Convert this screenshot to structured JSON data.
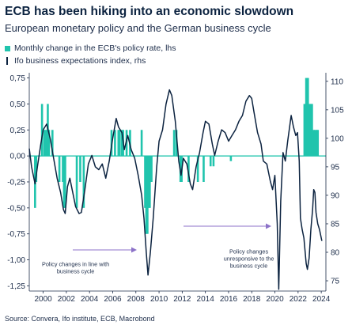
{
  "title": "ECB has been hiking into an economic slowdown",
  "subtitle": "European monetary policy and the German business cycle",
  "source": "Source: Convera, Ifo institute, ECB, Macrobond",
  "colors": {
    "bars": "#20c4ad",
    "line": "#0c2340",
    "axis": "#1d2d4a",
    "arrow": "#8c72c8",
    "zero": "#20c4ad"
  },
  "chart_data": {
    "type": "bar",
    "xlim": [
      1998.8,
      2024.4
    ],
    "x_ticks": [
      "2000",
      "2002",
      "2004",
      "2006",
      "2008",
      "2010",
      "2012",
      "2014",
      "2016",
      "2018",
      "2020",
      "2022",
      "2024"
    ],
    "y_left": {
      "lim": [
        -1.3,
        0.8
      ],
      "ticks": [
        "0,75",
        "0,50",
        "0,25",
        "0,00",
        "-0,25",
        "-0,50",
        "-0,75",
        "-1,00",
        "-1,25"
      ]
    },
    "y_right": {
      "lim": [
        73.2,
        111.5
      ],
      "ticks": [
        "110",
        "105",
        "100",
        "95",
        "90",
        "85",
        "80",
        "75"
      ]
    },
    "series": [
      {
        "name": "Monthly change in the ECB's policy rate, lhs",
        "type": "bar",
        "axis": "left",
        "points": [
          [
            1999.3,
            -0.5
          ],
          [
            1999.4,
            -0.25
          ],
          [
            1999.9,
            0.5
          ],
          [
            2000.1,
            0.25
          ],
          [
            2000.2,
            0.25
          ],
          [
            2000.3,
            0.25
          ],
          [
            2000.4,
            0.5
          ],
          [
            2000.5,
            0.25
          ],
          [
            2000.8,
            0.25
          ],
          [
            2001.4,
            -0.25
          ],
          [
            2001.7,
            -0.25
          ],
          [
            2001.8,
            -0.5
          ],
          [
            2001.9,
            -0.5
          ],
          [
            2002.9,
            -0.5
          ],
          [
            2003.2,
            -0.25
          ],
          [
            2003.5,
            -0.5
          ],
          [
            2005.9,
            0.25
          ],
          [
            2006.2,
            0.25
          ],
          [
            2006.5,
            0.25
          ],
          [
            2006.6,
            0.25
          ],
          [
            2006.8,
            0.25
          ],
          [
            2006.9,
            0.25
          ],
          [
            2007.2,
            0.25
          ],
          [
            2007.5,
            0.25
          ],
          [
            2008.5,
            0.25
          ],
          [
            2008.8,
            -0.5
          ],
          [
            2008.85,
            -0.5
          ],
          [
            2008.9,
            -0.75
          ],
          [
            2009.0,
            -0.75
          ],
          [
            2009.1,
            -0.5
          ],
          [
            2009.2,
            -0.5
          ],
          [
            2009.35,
            -0.25
          ],
          [
            2011.3,
            0.25
          ],
          [
            2011.5,
            0.25
          ],
          [
            2011.85,
            -0.25
          ],
          [
            2011.95,
            -0.25
          ],
          [
            2012.55,
            -0.25
          ],
          [
            2013.35,
            -0.25
          ],
          [
            2013.85,
            -0.25
          ],
          [
            2014.45,
            -0.1
          ],
          [
            2014.7,
            -0.1
          ],
          [
            2016.2,
            -0.05
          ],
          [
            2022.55,
            0.5
          ],
          [
            2022.7,
            0.75
          ],
          [
            2022.85,
            0.75
          ],
          [
            2023.0,
            0.5
          ],
          [
            2023.1,
            0.5
          ],
          [
            2023.2,
            0.5
          ],
          [
            2023.35,
            0.25
          ],
          [
            2023.45,
            0.25
          ],
          [
            2023.6,
            0.25
          ],
          [
            2023.7,
            0.25
          ]
        ]
      },
      {
        "name": "Ifo business expectations index, rhs",
        "type": "line",
        "axis": "right",
        "points": [
          [
            1998.8,
            98.2
          ],
          [
            1999.0,
            95.0
          ],
          [
            1999.3,
            92.0
          ],
          [
            1999.5,
            95.0
          ],
          [
            1999.8,
            99.0
          ],
          [
            2000.0,
            101.5
          ],
          [
            2000.3,
            102.5
          ],
          [
            2000.6,
            100.0
          ],
          [
            2000.9,
            96.5
          ],
          [
            2001.2,
            93.0
          ],
          [
            2001.5,
            90.5
          ],
          [
            2001.75,
            87.5
          ],
          [
            2001.9,
            86.8
          ],
          [
            2002.1,
            91.5
          ],
          [
            2002.3,
            93.0
          ],
          [
            2002.5,
            91.0
          ],
          [
            2002.8,
            88.0
          ],
          [
            2003.1,
            86.8
          ],
          [
            2003.3,
            87.0
          ],
          [
            2003.6,
            91.0
          ],
          [
            2003.9,
            95.5
          ],
          [
            2004.2,
            97.0
          ],
          [
            2004.5,
            95.0
          ],
          [
            2004.8,
            94.5
          ],
          [
            2005.1,
            95.5
          ],
          [
            2005.4,
            93.0
          ],
          [
            2005.7,
            96.0
          ],
          [
            2006.0,
            100.0
          ],
          [
            2006.3,
            103.5
          ],
          [
            2006.5,
            102.0
          ],
          [
            2006.8,
            101.0
          ],
          [
            2007.0,
            98.0
          ],
          [
            2007.3,
            100.5
          ],
          [
            2007.6,
            98.0
          ],
          [
            2007.9,
            96.5
          ],
          [
            2008.2,
            93.5
          ],
          [
            2008.5,
            90.0
          ],
          [
            2008.7,
            86.0
          ],
          [
            2008.9,
            80.0
          ],
          [
            2009.05,
            76.0
          ],
          [
            2009.25,
            80.0
          ],
          [
            2009.5,
            86.0
          ],
          [
            2009.8,
            95.0
          ],
          [
            2010.0,
            99.5
          ],
          [
            2010.3,
            101.5
          ],
          [
            2010.6,
            106.0
          ],
          [
            2010.9,
            108.5
          ],
          [
            2011.1,
            107.5
          ],
          [
            2011.4,
            103.0
          ],
          [
            2011.7,
            96.0
          ],
          [
            2011.9,
            93.5
          ],
          [
            2012.1,
            96.5
          ],
          [
            2012.4,
            95.5
          ],
          [
            2012.7,
            92.0
          ],
          [
            2012.9,
            91.0
          ],
          [
            2013.2,
            95.0
          ],
          [
            2013.5,
            97.5
          ],
          [
            2013.8,
            101.0
          ],
          [
            2014.0,
            103.0
          ],
          [
            2014.3,
            102.5
          ],
          [
            2014.6,
            99.0
          ],
          [
            2014.8,
            97.0
          ],
          [
            2015.1,
            99.5
          ],
          [
            2015.4,
            101.5
          ],
          [
            2015.7,
            101.0
          ],
          [
            2016.0,
            99.5
          ],
          [
            2016.3,
            100.5
          ],
          [
            2016.6,
            101.5
          ],
          [
            2016.9,
            103.0
          ],
          [
            2017.2,
            104.0
          ],
          [
            2017.5,
            106.5
          ],
          [
            2017.8,
            107.5
          ],
          [
            2018.0,
            107.0
          ],
          [
            2018.2,
            104.5
          ],
          [
            2018.5,
            101.0
          ],
          [
            2018.8,
            99.0
          ],
          [
            2019.0,
            96.0
          ],
          [
            2019.3,
            95.5
          ],
          [
            2019.6,
            92.5
          ],
          [
            2019.8,
            91.0
          ],
          [
            2020.0,
            93.5
          ],
          [
            2020.2,
            85.0
          ],
          [
            2020.33,
            73.5
          ],
          [
            2020.5,
            89.0
          ],
          [
            2020.7,
            97.5
          ],
          [
            2020.9,
            96.0
          ],
          [
            2021.1,
            99.5
          ],
          [
            2021.4,
            104.0
          ],
          [
            2021.6,
            102.0
          ],
          [
            2021.8,
            100.5
          ],
          [
            2021.95,
            101.0
          ],
          [
            2022.1,
            96.0
          ],
          [
            2022.2,
            86.0
          ],
          [
            2022.35,
            84.0
          ],
          [
            2022.5,
            82.5
          ],
          [
            2022.7,
            78.0
          ],
          [
            2022.8,
            77.0
          ],
          [
            2022.95,
            79.0
          ],
          [
            2023.1,
            84.0
          ],
          [
            2023.25,
            87.5
          ],
          [
            2023.35,
            91.0
          ],
          [
            2023.45,
            90.5
          ],
          [
            2023.55,
            87.0
          ],
          [
            2023.7,
            85.0
          ],
          [
            2023.85,
            84.0
          ],
          [
            2024.05,
            82.0
          ]
        ]
      }
    ],
    "annotations": [
      {
        "lines": [
          "Policy changes in line with",
          "business cycle"
        ],
        "x": 2002.8,
        "y": -1.06
      },
      {
        "lines": [
          "Policy changes",
          "unresponsive to the",
          "business cycle"
        ],
        "x": 2017.75,
        "y": -0.94
      }
    ]
  }
}
